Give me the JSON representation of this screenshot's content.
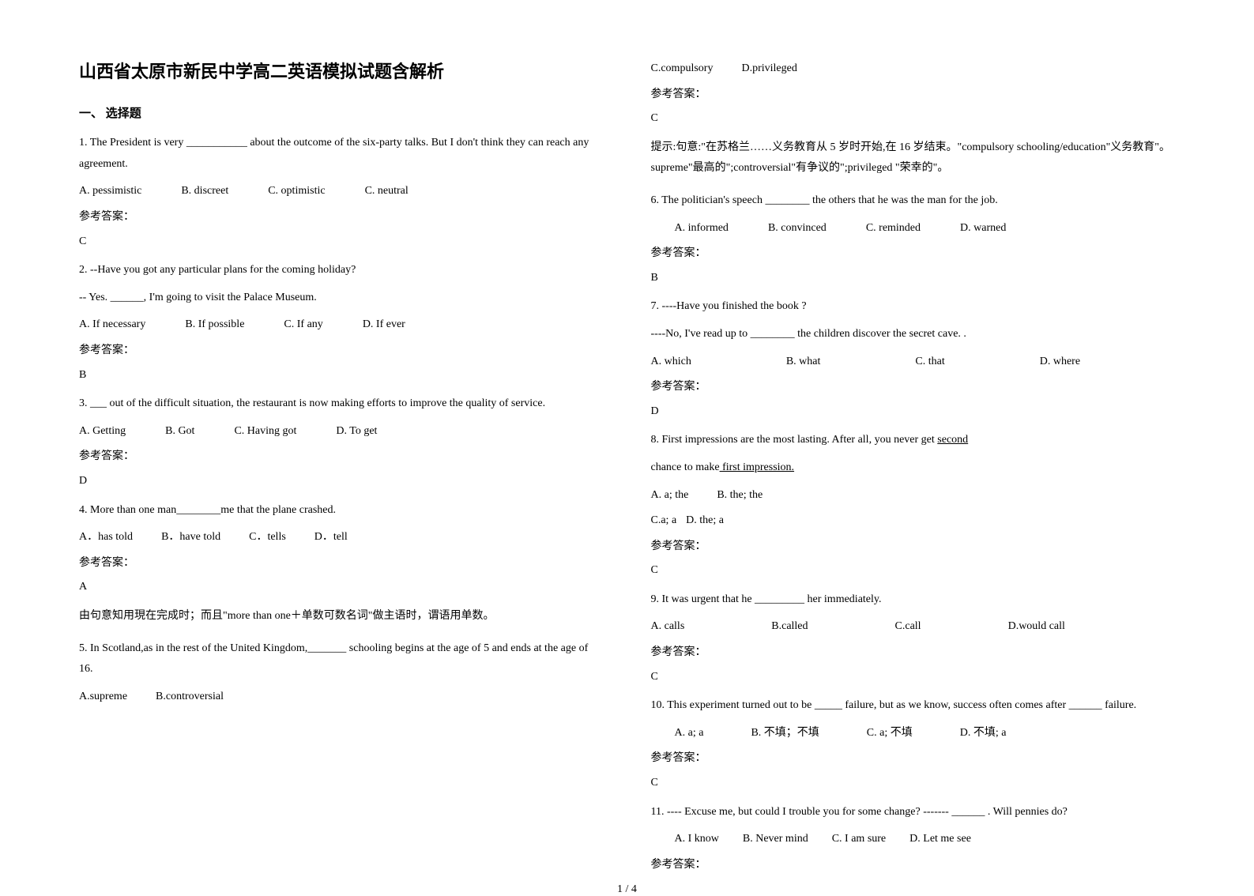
{
  "title": "山西省太原市新民中学高二英语模拟试题含解析",
  "section_heading": "一、 选择题",
  "answer_label": "参考答案：",
  "footer": "1 / 4",
  "q1": {
    "text": "1. The President is very ___________ about the outcome of the six-party talks. But I don't think they can reach any agreement.",
    "a": "A. pessimistic",
    "b": "B. discreet",
    "c": "C. optimistic",
    "d": "C. neutral",
    "ans": "C"
  },
  "q2": {
    "line1": "2. --Have you got any particular plans for the coming holiday?",
    "line2": "-- Yes. ______, I'm going to visit the Palace Museum.",
    "a": "A. If necessary",
    "b": "B. If possible",
    "c": "C. If any",
    "d": "D. If ever",
    "ans": "B"
  },
  "q3": {
    "text": "3. ___ out of the difficult situation, the restaurant is now making efforts to improve the quality of service.",
    "a": "A. Getting",
    "b": "B. Got",
    "c": "C. Having got",
    "d": "D. To get",
    "ans": "D"
  },
  "q4": {
    "text": "4. More than one man________me that the plane crashed.",
    "a": "A．has told",
    "b": "B．have told",
    "c": "C．tells",
    "d": "D．tell",
    "ans": "A",
    "tip": "由句意知用現在完成时；而且\"more than one＋单数可数名词\"做主语时，谓语用单数。"
  },
  "q5": {
    "text": "5. In Scotland,as in the rest of the United Kingdom,_______ schooling begins at the age of 5 and ends at the age of 16.",
    "a": "A.supreme",
    "b": "B.controversial",
    "c": "C.compulsory",
    "d": "D.privileged",
    "ans": "C",
    "tip": "提示:句意:\"在苏格兰……义务教育从 5 岁时开始,在 16 岁结束。\"compulsory schooling/education\"义务教育\"。supreme\"最高的\";controversial\"有争议的\";privileged \"荣幸的\"。"
  },
  "q6": {
    "text": "6. The politician's speech ________ the others that he was the man for the job.",
    "a": "A. informed",
    "b": "B. convinced",
    "c": "C. reminded",
    "d": "D. warned",
    "ans": "B"
  },
  "q7": {
    "line1": "7. ----Have you finished the book ?",
    "line2": "----No, I've read up to ________ the children discover the secret cave. .",
    "a": "A. which",
    "b": "B. what",
    "c": "C. that",
    "d": "D. where",
    "ans": "D"
  },
  "q8": {
    "line1_pre": "8. First impressions are the most lasting. After all, you never get ",
    "line1_u": "  second",
    "line2_pre": "chance to make",
    "line2_u": " first impression.",
    "a": "A. a; the",
    "b": "B. the; the",
    "c": "C.a; a",
    "d": "D. the; a",
    "ans": "C"
  },
  "q9": {
    "text": "9. It was urgent that he _________ her immediately.",
    "a": "A. calls",
    "b": "B.called",
    "c": "C.call",
    "d": "D.would call",
    "ans": "C"
  },
  "q10": {
    "text": "10. This experiment turned out to be _____ failure, but as we know, success often comes after ______ failure.",
    "a": "A. a; a",
    "b": "B. 不填；不填",
    "c": "C. a; 不填",
    "d": "D. 不填; a",
    "ans": "C"
  },
  "q11": {
    "text": "11. ---- Excuse me, but could I trouble you for some change? ------- ______ . Will pennies do?",
    "a": "A. I know",
    "b": "B. Never mind",
    "c": "C. I am sure",
    "d": "D. Let me see"
  }
}
